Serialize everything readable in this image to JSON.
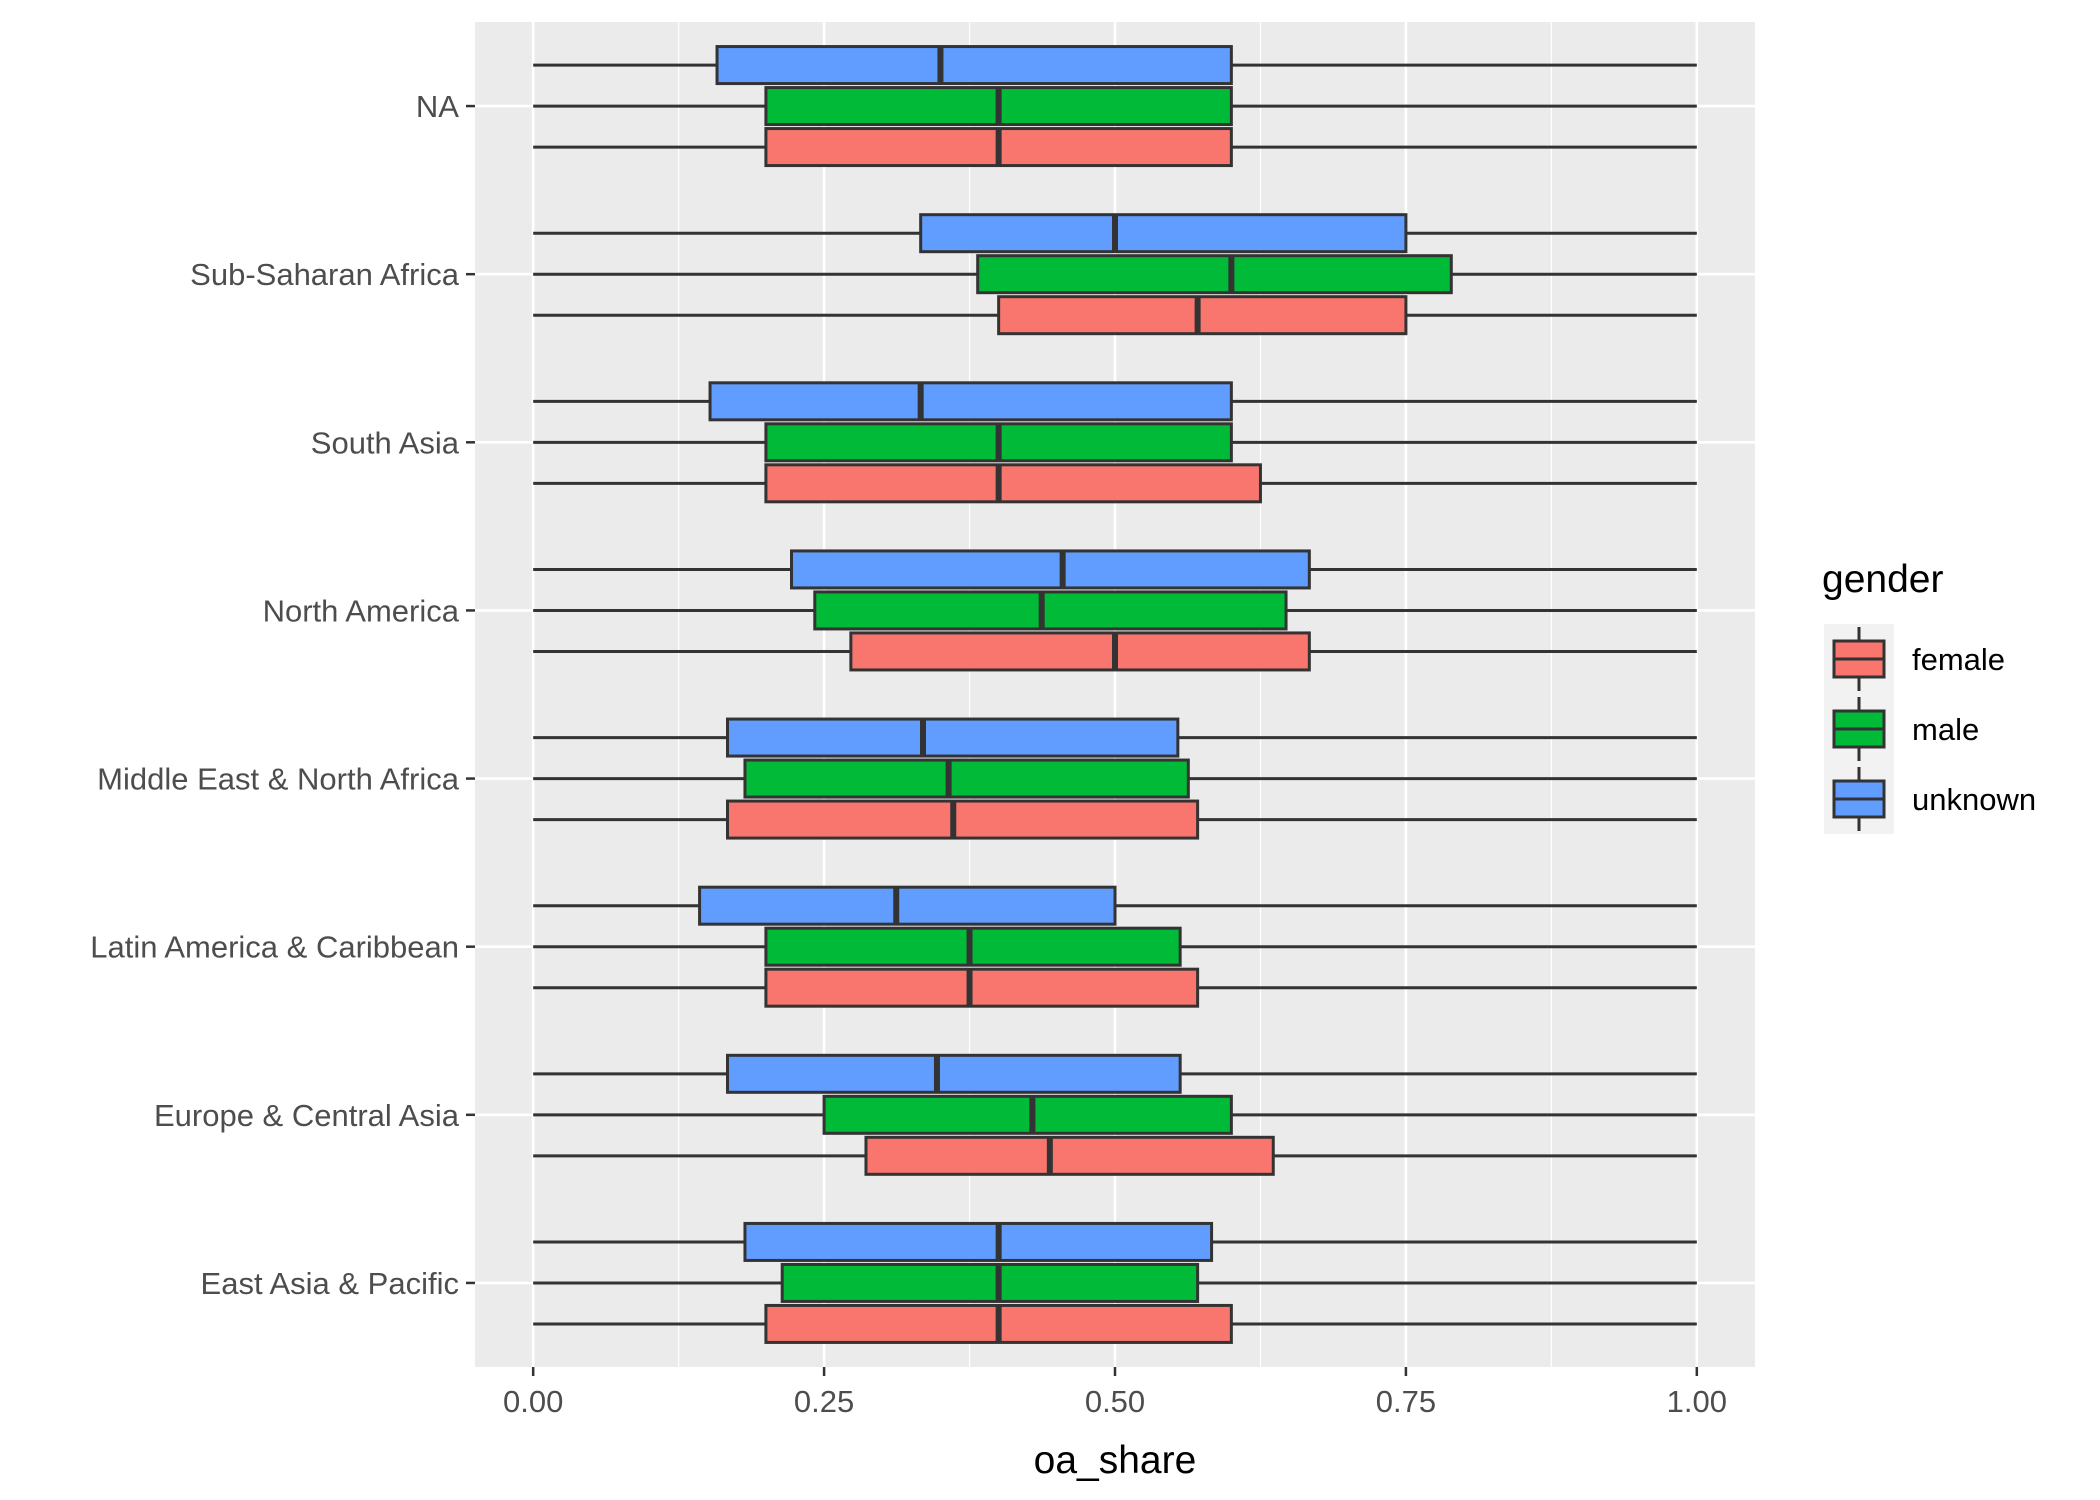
{
  "chart_data": {
    "type": "boxplot",
    "orientation": "horizontal",
    "title": "",
    "xlabel": "oa_share",
    "ylabel": "",
    "xlim": [
      -0.05,
      1.05
    ],
    "x_ticks": [
      {
        "value": 0.0,
        "label": "0.00"
      },
      {
        "value": 0.25,
        "label": "0.25"
      },
      {
        "value": 0.5,
        "label": "0.50"
      },
      {
        "value": 0.75,
        "label": "0.75"
      },
      {
        "value": 1.0,
        "label": "1.00"
      }
    ],
    "categories": [
      "East Asia & Pacific",
      "Europe & Central Asia",
      "Latin America & Caribbean",
      "Middle East & North Africa",
      "North America",
      "South Asia",
      "Sub-Saharan Africa",
      "NA"
    ],
    "grid": true,
    "legend": {
      "title": "gender",
      "position": "right",
      "entries": [
        {
          "name": "female",
          "color": "#F8766D"
        },
        {
          "name": "male",
          "color": "#00BA38"
        },
        {
          "name": "unknown",
          "color": "#619CFF"
        }
      ]
    },
    "series": [
      {
        "name": "female",
        "color": "#F8766D",
        "boxes": [
          {
            "min": 0,
            "q1": 0.2,
            "median": 0.4,
            "q3": 0.6,
            "max": 1
          },
          {
            "min": 0,
            "q1": 0.286,
            "median": 0.444,
            "q3": 0.636,
            "max": 1
          },
          {
            "min": 0,
            "q1": 0.2,
            "median": 0.375,
            "q3": 0.571,
            "max": 1
          },
          {
            "min": 0,
            "q1": 0.167,
            "median": 0.361,
            "q3": 0.571,
            "max": 1
          },
          {
            "min": 0,
            "q1": 0.273,
            "median": 0.5,
            "q3": 0.667,
            "max": 1
          },
          {
            "min": 0,
            "q1": 0.2,
            "median": 0.4,
            "q3": 0.625,
            "max": 1
          },
          {
            "min": 0,
            "q1": 0.4,
            "median": 0.571,
            "q3": 0.75,
            "max": 1
          },
          {
            "min": 0,
            "q1": 0.2,
            "median": 0.4,
            "q3": 0.6,
            "max": 1
          }
        ]
      },
      {
        "name": "male",
        "color": "#00BA38",
        "boxes": [
          {
            "min": 0,
            "q1": 0.214,
            "median": 0.4,
            "q3": 0.571,
            "max": 1
          },
          {
            "min": 0,
            "q1": 0.25,
            "median": 0.429,
            "q3": 0.6,
            "max": 1
          },
          {
            "min": 0,
            "q1": 0.2,
            "median": 0.375,
            "q3": 0.556,
            "max": 1
          },
          {
            "min": 0,
            "q1": 0.182,
            "median": 0.357,
            "q3": 0.563,
            "max": 1
          },
          {
            "min": 0,
            "q1": 0.242,
            "median": 0.437,
            "q3": 0.647,
            "max": 1
          },
          {
            "min": 0,
            "q1": 0.2,
            "median": 0.4,
            "q3": 0.6,
            "max": 1
          },
          {
            "min": 0,
            "q1": 0.382,
            "median": 0.6,
            "q3": 0.789,
            "max": 1
          },
          {
            "min": 0,
            "q1": 0.2,
            "median": 0.4,
            "q3": 0.6,
            "max": 1
          }
        ]
      },
      {
        "name": "unknown",
        "color": "#619CFF",
        "boxes": [
          {
            "min": 0,
            "q1": 0.182,
            "median": 0.4,
            "q3": 0.583,
            "max": 1
          },
          {
            "min": 0,
            "q1": 0.167,
            "median": 0.347,
            "q3": 0.556,
            "max": 1
          },
          {
            "min": 0,
            "q1": 0.143,
            "median": 0.312,
            "q3": 0.5,
            "max": 1
          },
          {
            "min": 0,
            "q1": 0.167,
            "median": 0.335,
            "q3": 0.554,
            "max": 1
          },
          {
            "min": 0,
            "q1": 0.222,
            "median": 0.455,
            "q3": 0.667,
            "max": 1
          },
          {
            "min": 0,
            "q1": 0.152,
            "median": 0.333,
            "q3": 0.6,
            "max": 1
          },
          {
            "min": 0,
            "q1": 0.333,
            "median": 0.5,
            "q3": 0.75,
            "max": 1
          },
          {
            "min": 0,
            "q1": 0.158,
            "median": 0.35,
            "q3": 0.6,
            "max": 1
          }
        ]
      }
    ]
  }
}
